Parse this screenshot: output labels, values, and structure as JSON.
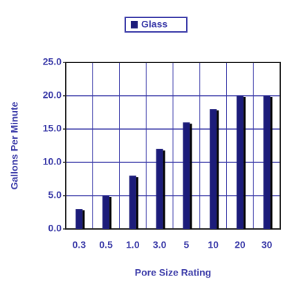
{
  "chart_data": {
    "type": "bar",
    "x_label": "Pore Size Rating",
    "y_label": "Gallons Per Minute",
    "categories": [
      "0.3",
      "0.5",
      "1.0",
      "3.0",
      "5",
      "10",
      "20",
      "30"
    ],
    "series": [
      {
        "name": "Glass",
        "color": "#1c1c7a",
        "values": [
          3,
          5,
          8,
          12,
          16,
          18,
          20,
          20
        ]
      }
    ],
    "ylim": [
      0,
      25
    ],
    "yticks": [
      {
        "value": 0,
        "label": "0.0"
      },
      {
        "value": 5,
        "label": "5.0"
      },
      {
        "value": 10,
        "label": "10.0"
      },
      {
        "value": 15,
        "label": "15.0"
      },
      {
        "value": 20,
        "label": "20.0"
      },
      {
        "value": 25,
        "label": "25.0"
      }
    ],
    "grid": true,
    "legend": "top"
  }
}
